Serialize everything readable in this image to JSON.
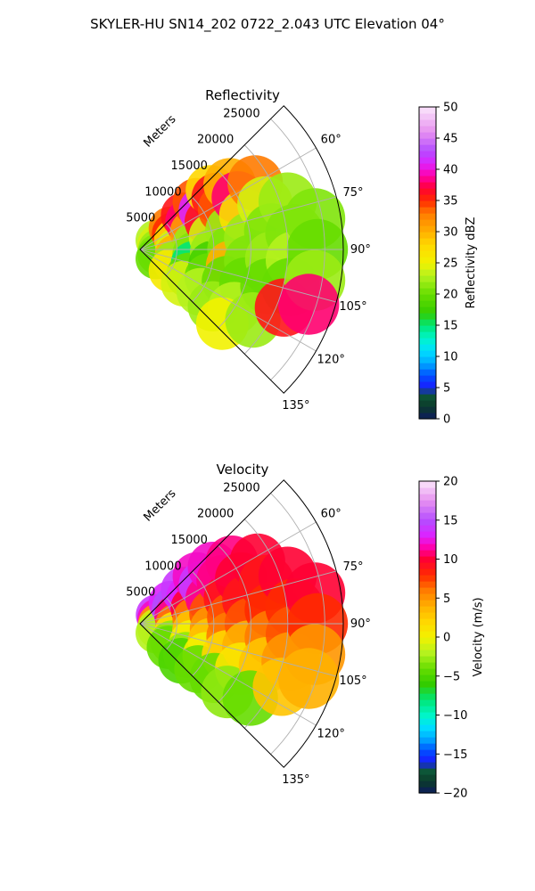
{
  "figure": {
    "suptitle": "SKYLER-HU  SN14_202  0722_2.043 UTC Elevation 04°"
  },
  "chart_data": [
    {
      "type": "heatmap",
      "subtype": "polar-sector-radar-ppi",
      "title": "Reflectivity",
      "radial_label": "Meters",
      "radial_ticks": [
        "5000",
        "10000",
        "15000",
        "20000",
        "25000"
      ],
      "radial_values": [
        5000,
        10000,
        15000,
        20000,
        25000
      ],
      "rmax": 27500,
      "angle_ticks": [
        "60°",
        "75°",
        "90°",
        "105°",
        "120°",
        "135°"
      ],
      "angle_values": [
        60,
        75,
        90,
        105,
        120,
        135
      ],
      "theta_range": [
        45,
        135
      ],
      "colorbar": {
        "label": "Reflectivity dBZ",
        "min": 0,
        "max": 50,
        "ticks": [
          "0",
          "5",
          "10",
          "15",
          "20",
          "25",
          "30",
          "35",
          "40",
          "45",
          "50"
        ],
        "tick_values": [
          0,
          5,
          10,
          15,
          20,
          25,
          30,
          35,
          40,
          45,
          50
        ],
        "stops": [
          {
            "v": 0,
            "c": "#0d1b5e"
          },
          {
            "v": 2,
            "c": "#0b3a2a"
          },
          {
            "v": 4,
            "c": "#0d5a3a"
          },
          {
            "v": 5,
            "c": "#1a1aff"
          },
          {
            "v": 7,
            "c": "#0050ff"
          },
          {
            "v": 9,
            "c": "#00aaff"
          },
          {
            "v": 11,
            "c": "#00e0ff"
          },
          {
            "v": 13,
            "c": "#00f5c8"
          },
          {
            "v": 15,
            "c": "#00e676"
          },
          {
            "v": 17,
            "c": "#33cc00"
          },
          {
            "v": 20,
            "c": "#66dd00"
          },
          {
            "v": 23,
            "c": "#b5f21e"
          },
          {
            "v": 25,
            "c": "#f2f200"
          },
          {
            "v": 28,
            "c": "#ffd700"
          },
          {
            "v": 30,
            "c": "#ffb000"
          },
          {
            "v": 33,
            "c": "#ff7b00"
          },
          {
            "v": 35,
            "c": "#ff2a00"
          },
          {
            "v": 37,
            "c": "#ff0033"
          },
          {
            "v": 39,
            "c": "#ff00aa"
          },
          {
            "v": 41,
            "c": "#dd22ff"
          },
          {
            "v": 43,
            "c": "#b44dff"
          },
          {
            "v": 46,
            "c": "#e690f0"
          },
          {
            "v": 50,
            "c": "#fbe6fb"
          }
        ]
      },
      "cells": [
        {
          "r": 2500,
          "t": 60,
          "v": 23
        },
        {
          "r": 2500,
          "t": 75,
          "v": 24
        },
        {
          "r": 2500,
          "t": 90,
          "v": 22
        },
        {
          "r": 2500,
          "t": 105,
          "v": 21
        },
        {
          "r": 2500,
          "t": 120,
          "v": 20
        },
        {
          "r": 5000,
          "t": 55,
          "v": 33
        },
        {
          "r": 5000,
          "t": 65,
          "v": 35
        },
        {
          "r": 5000,
          "t": 75,
          "v": 28
        },
        {
          "r": 5000,
          "t": 90,
          "v": 24
        },
        {
          "r": 5000,
          "t": 100,
          "v": 30
        },
        {
          "r": 5000,
          "t": 110,
          "v": 22
        },
        {
          "r": 5000,
          "t": 125,
          "v": 26
        },
        {
          "r": 7500,
          "t": 52,
          "v": 36
        },
        {
          "r": 7500,
          "t": 60,
          "v": 38
        },
        {
          "r": 7500,
          "t": 72,
          "v": 31
        },
        {
          "r": 7500,
          "t": 85,
          "v": 22
        },
        {
          "r": 7500,
          "t": 95,
          "v": 21
        },
        {
          "r": 7500,
          "t": 105,
          "v": 15
        },
        {
          "r": 7500,
          "t": 118,
          "v": 20
        },
        {
          "r": 7500,
          "t": 128,
          "v": 24
        },
        {
          "r": 10000,
          "t": 50,
          "v": 34
        },
        {
          "r": 10000,
          "t": 58,
          "v": 41
        },
        {
          "r": 10000,
          "t": 68,
          "v": 36
        },
        {
          "r": 10000,
          "t": 80,
          "v": 24
        },
        {
          "r": 10000,
          "t": 92,
          "v": 22
        },
        {
          "r": 10000,
          "t": 102,
          "v": 18
        },
        {
          "r": 10000,
          "t": 112,
          "v": 20
        },
        {
          "r": 10000,
          "t": 125,
          "v": 23
        },
        {
          "r": 12500,
          "t": 50,
          "v": 28
        },
        {
          "r": 12500,
          "t": 56,
          "v": 36
        },
        {
          "r": 12500,
          "t": 64,
          "v": 34
        },
        {
          "r": 12500,
          "t": 78,
          "v": 22
        },
        {
          "r": 12500,
          "t": 90,
          "v": 21
        },
        {
          "r": 12500,
          "t": 100,
          "v": 30
        },
        {
          "r": 12500,
          "t": 110,
          "v": 20
        },
        {
          "r": 12500,
          "t": 128,
          "v": 22
        },
        {
          "r": 15000,
          "t": 54,
          "v": 30
        },
        {
          "r": 15000,
          "t": 62,
          "v": 38
        },
        {
          "r": 15000,
          "t": 72,
          "v": 27
        },
        {
          "r": 15000,
          "t": 84,
          "v": 22
        },
        {
          "r": 15000,
          "t": 96,
          "v": 21
        },
        {
          "r": 15000,
          "t": 108,
          "v": 20
        },
        {
          "r": 15000,
          "t": 122,
          "v": 23
        },
        {
          "r": 15000,
          "t": 132,
          "v": 25
        },
        {
          "r": 18000,
          "t": 60,
          "v": 33
        },
        {
          "r": 18000,
          "t": 70,
          "v": 24
        },
        {
          "r": 18000,
          "t": 82,
          "v": 21
        },
        {
          "r": 18000,
          "t": 94,
          "v": 22
        },
        {
          "r": 18000,
          "t": 106,
          "v": 20
        },
        {
          "r": 18000,
          "t": 122,
          "v": 22
        },
        {
          "r": 21000,
          "t": 72,
          "v": 22
        },
        {
          "r": 21000,
          "t": 84,
          "v": 21
        },
        {
          "r": 21000,
          "t": 94,
          "v": 23
        },
        {
          "r": 21000,
          "t": 104,
          "v": 20
        },
        {
          "r": 21000,
          "t": 112,
          "v": 36
        },
        {
          "r": 24000,
          "t": 80,
          "v": 21
        },
        {
          "r": 24000,
          "t": 90,
          "v": 20
        },
        {
          "r": 24000,
          "t": 100,
          "v": 22
        },
        {
          "r": 24000,
          "t": 108,
          "v": 38
        }
      ]
    },
    {
      "type": "heatmap",
      "subtype": "polar-sector-radar-ppi",
      "title": "Velocity",
      "radial_label": "Meters",
      "radial_ticks": [
        "5000",
        "10000",
        "15000",
        "20000",
        "25000"
      ],
      "radial_values": [
        5000,
        10000,
        15000,
        20000,
        25000
      ],
      "rmax": 27500,
      "angle_ticks": [
        "60°",
        "75°",
        "90°",
        "105°",
        "120°",
        "135°"
      ],
      "angle_values": [
        60,
        75,
        90,
        105,
        120,
        135
      ],
      "theta_range": [
        45,
        135
      ],
      "colorbar": {
        "label": "Velocity (m/s)",
        "min": -20,
        "max": 20,
        "ticks": [
          "−20",
          "−15",
          "−10",
          "−5",
          "0",
          "5",
          "10",
          "15",
          "20"
        ],
        "tick_values": [
          -20,
          -15,
          -10,
          -5,
          0,
          5,
          10,
          15,
          20
        ],
        "stops": [
          {
            "v": -20,
            "c": "#0d1b5e"
          },
          {
            "v": -18.5,
            "c": "#0b3a2a"
          },
          {
            "v": -17,
            "c": "#0d5a3a"
          },
          {
            "v": -16,
            "c": "#1a1aff"
          },
          {
            "v": -14.5,
            "c": "#0050ff"
          },
          {
            "v": -13,
            "c": "#00aaff"
          },
          {
            "v": -11.5,
            "c": "#00e0ff"
          },
          {
            "v": -10,
            "c": "#00f5c8"
          },
          {
            "v": -8,
            "c": "#00e676"
          },
          {
            "v": -6,
            "c": "#33cc00"
          },
          {
            "v": -4,
            "c": "#66dd00"
          },
          {
            "v": -2,
            "c": "#b5f21e"
          },
          {
            "v": 0,
            "c": "#f2f200"
          },
          {
            "v": 2,
            "c": "#ffd700"
          },
          {
            "v": 4,
            "c": "#ffb000"
          },
          {
            "v": 6,
            "c": "#ff7b00"
          },
          {
            "v": 8,
            "c": "#ff2a00"
          },
          {
            "v": 10,
            "c": "#ff0033"
          },
          {
            "v": 11.5,
            "c": "#ff00aa"
          },
          {
            "v": 13,
            "c": "#dd22ff"
          },
          {
            "v": 15,
            "c": "#b44dff"
          },
          {
            "v": 17.5,
            "c": "#e690f0"
          },
          {
            "v": 20,
            "c": "#fbe6fb"
          }
        ]
      },
      "cells": [
        {
          "r": 2500,
          "t": 62,
          "v": 14
        },
        {
          "r": 2500,
          "t": 75,
          "v": 12
        },
        {
          "r": 2500,
          "t": 90,
          "v": 5
        },
        {
          "r": 2500,
          "t": 105,
          "v": -1
        },
        {
          "r": 2500,
          "t": 120,
          "v": -2
        },
        {
          "r": 5000,
          "t": 55,
          "v": 13
        },
        {
          "r": 5000,
          "t": 65,
          "v": 15
        },
        {
          "r": 5000,
          "t": 78,
          "v": 11
        },
        {
          "r": 5000,
          "t": 92,
          "v": 6
        },
        {
          "r": 5000,
          "t": 105,
          "v": 1
        },
        {
          "r": 5000,
          "t": 120,
          "v": -3
        },
        {
          "r": 5000,
          "t": 130,
          "v": -4
        },
        {
          "r": 7500,
          "t": 52,
          "v": 14
        },
        {
          "r": 7500,
          "t": 62,
          "v": 13
        },
        {
          "r": 7500,
          "t": 74,
          "v": 10
        },
        {
          "r": 7500,
          "t": 86,
          "v": 6
        },
        {
          "r": 7500,
          "t": 98,
          "v": 3
        },
        {
          "r": 7500,
          "t": 110,
          "v": 0
        },
        {
          "r": 7500,
          "t": 124,
          "v": -3
        },
        {
          "r": 7500,
          "t": 132,
          "v": -5
        },
        {
          "r": 10000,
          "t": 50,
          "v": 12
        },
        {
          "r": 10000,
          "t": 58,
          "v": 14
        },
        {
          "r": 10000,
          "t": 70,
          "v": 11
        },
        {
          "r": 10000,
          "t": 82,
          "v": 7
        },
        {
          "r": 10000,
          "t": 94,
          "v": 5
        },
        {
          "r": 10000,
          "t": 104,
          "v": 3
        },
        {
          "r": 10000,
          "t": 116,
          "v": 0
        },
        {
          "r": 10000,
          "t": 128,
          "v": -4
        },
        {
          "r": 12500,
          "t": 52,
          "v": 12
        },
        {
          "r": 12500,
          "t": 62,
          "v": 11
        },
        {
          "r": 12500,
          "t": 74,
          "v": 9
        },
        {
          "r": 12500,
          "t": 86,
          "v": 7
        },
        {
          "r": 12500,
          "t": 98,
          "v": 6
        },
        {
          "r": 12500,
          "t": 110,
          "v": 2
        },
        {
          "r": 12500,
          "t": 126,
          "v": -4
        },
        {
          "r": 15000,
          "t": 56,
          "v": 11
        },
        {
          "r": 15000,
          "t": 66,
          "v": 10
        },
        {
          "r": 15000,
          "t": 78,
          "v": 9
        },
        {
          "r": 15000,
          "t": 90,
          "v": 7
        },
        {
          "r": 15000,
          "t": 102,
          "v": 4
        },
        {
          "r": 15000,
          "t": 114,
          "v": 1
        },
        {
          "r": 15000,
          "t": 128,
          "v": -3
        },
        {
          "r": 18000,
          "t": 62,
          "v": 10
        },
        {
          "r": 18000,
          "t": 72,
          "v": 9
        },
        {
          "r": 18000,
          "t": 84,
          "v": 8
        },
        {
          "r": 18000,
          "t": 96,
          "v": 6
        },
        {
          "r": 18000,
          "t": 108,
          "v": 3
        },
        {
          "r": 18000,
          "t": 124,
          "v": -4
        },
        {
          "r": 21000,
          "t": 72,
          "v": 10
        },
        {
          "r": 21000,
          "t": 84,
          "v": 8
        },
        {
          "r": 21000,
          "t": 94,
          "v": 7
        },
        {
          "r": 21000,
          "t": 104,
          "v": 5
        },
        {
          "r": 21000,
          "t": 114,
          "v": 3
        },
        {
          "r": 24000,
          "t": 80,
          "v": 10
        },
        {
          "r": 24000,
          "t": 90,
          "v": 8
        },
        {
          "r": 24000,
          "t": 100,
          "v": 5
        },
        {
          "r": 24000,
          "t": 108,
          "v": 4
        }
      ]
    }
  ]
}
